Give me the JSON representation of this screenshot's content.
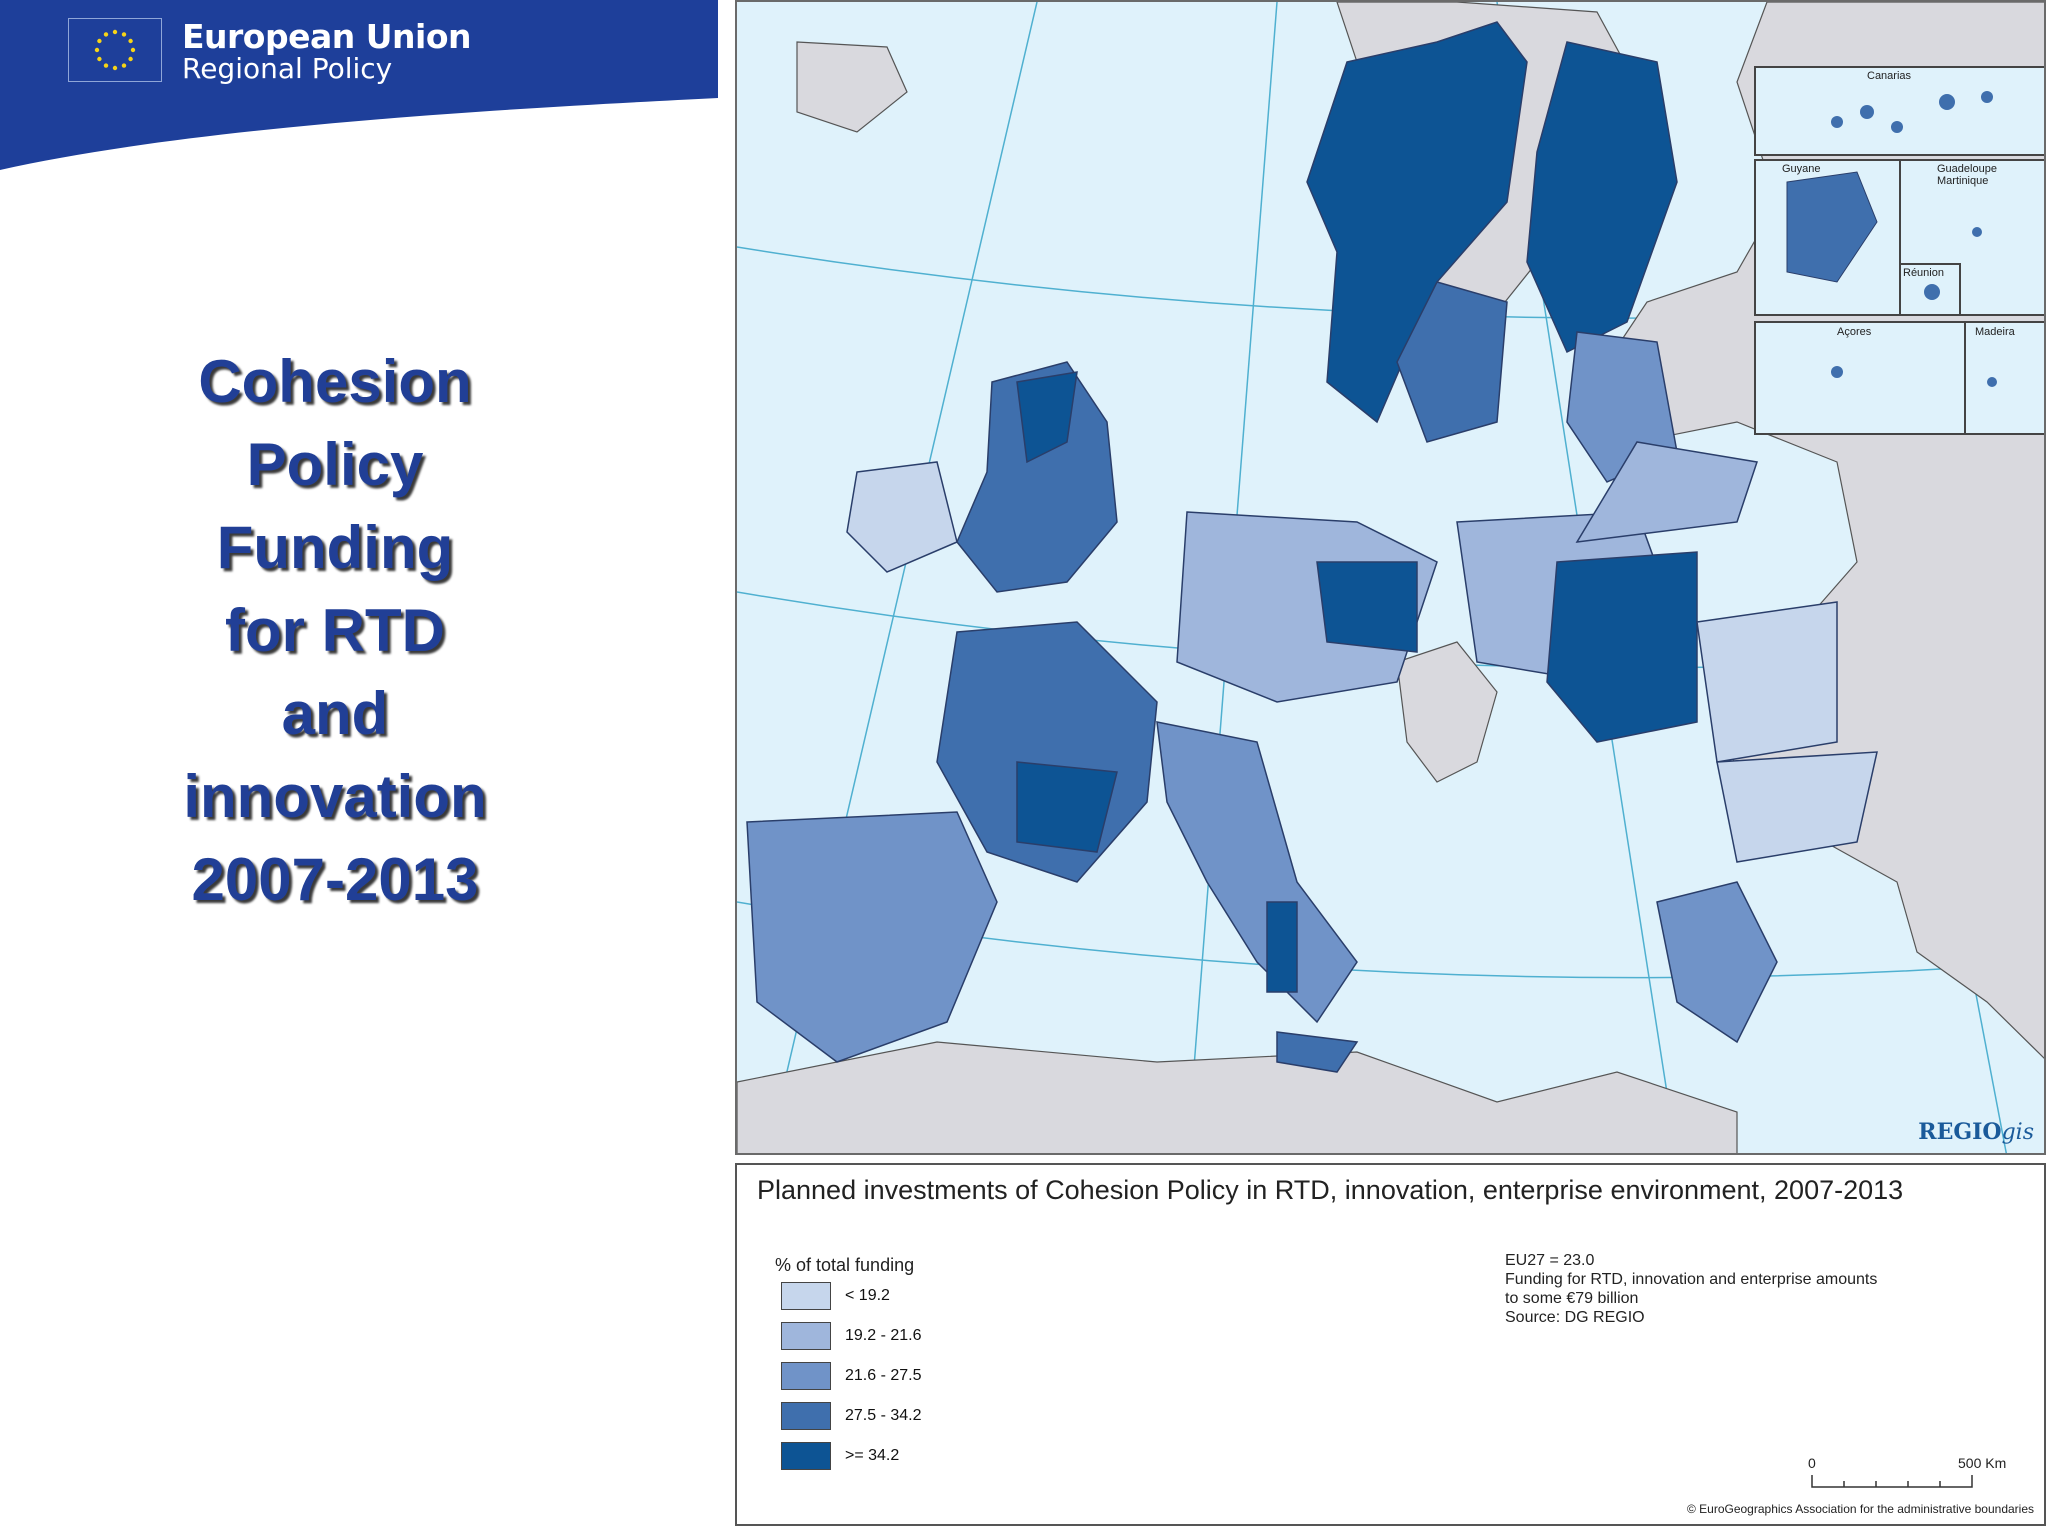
{
  "brand": {
    "line1": "European Union",
    "line2": "Regional Policy",
    "color": "#1e3f9a"
  },
  "title_lines": [
    "Cohesion",
    "Policy",
    "Funding",
    "for RTD",
    "and",
    "innovation",
    "2007-2013"
  ],
  "map": {
    "logo_main": "REGIO",
    "logo_suffix": "gis",
    "insets": [
      "Canarias",
      "Guyane",
      "Guadeloupe",
      "Martinique",
      "Réunion",
      "Açores",
      "Madeira"
    ],
    "sea_color": "#dff2fb",
    "non_eu_color": "#d9d9de"
  },
  "legend": {
    "title": "Planned investments of Cohesion Policy in RTD, innovation, enterprise environment, 2007-2013",
    "heading": "% of total funding",
    "classes": [
      {
        "label": "< 19.2",
        "color": "#c6d6ec"
      },
      {
        "label": "19.2 - 21.6",
        "color": "#9fb6dc"
      },
      {
        "label": "21.6 - 27.5",
        "color": "#7093c8"
      },
      {
        "label": "27.5 - 34.2",
        "color": "#3f6fad"
      },
      {
        "label": ">= 34.2",
        "color": "#0d5494"
      }
    ],
    "notes": [
      "EU27 = 23.0",
      "Funding for RTD, innovation and enterprise amounts",
      "to some €79 billion",
      "Source: DG REGIO"
    ],
    "scale_start": "0",
    "scale_end": "500 Km",
    "copyright": "© EuroGeographics Association for the administrative boundaries"
  }
}
